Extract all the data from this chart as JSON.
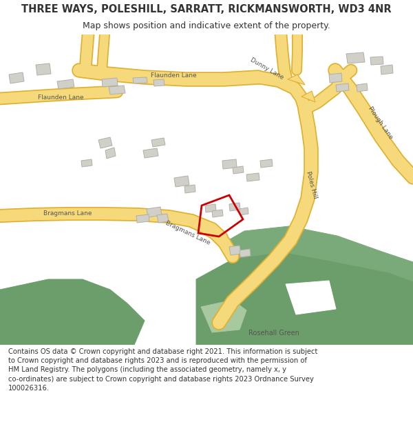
{
  "title": "THREE WAYS, POLESHILL, SARRATT, RICKMANSWORTH, WD3 4NR",
  "subtitle": "Map shows position and indicative extent of the property.",
  "bg_color": "#f8f8f0",
  "map_bg": "#ffffff",
  "road_yellow": "#f5d97a",
  "road_outline": "#e0b030",
  "green_color": "#6b9e6b",
  "building_color": "#d0cfc8",
  "building_edge": "#b0afa8",
  "red_plot": "#cc0000",
  "text_color": "#333333",
  "road_label_color": "#555555",
  "footer_text": "Contains OS data © Crown copyright and database right 2021. This information is subject\nto Crown copyright and database rights 2023 and is reproduced with the permission of\nHM Land Registry. The polygons (including the associated geometry, namely x, y\nco-ordinates) are subject to Crown copyright and database rights 2023 Ordnance Survey\n100026316."
}
